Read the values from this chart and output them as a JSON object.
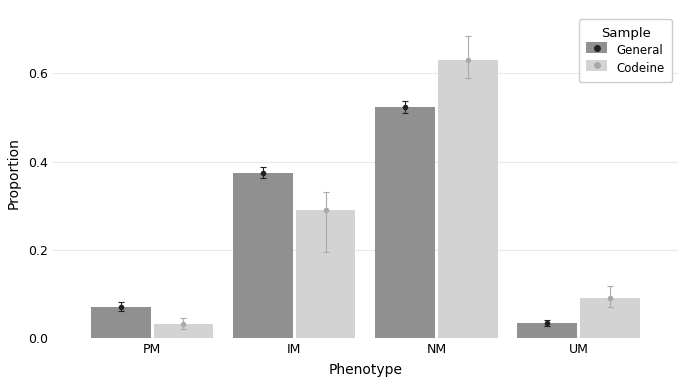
{
  "categories": [
    "PM",
    "IM",
    "NM",
    "UM"
  ],
  "general_values": [
    0.071,
    0.375,
    0.524,
    0.034
  ],
  "codeine_values": [
    0.033,
    0.29,
    0.63,
    0.09
  ],
  "general_errors_lo": [
    0.01,
    0.013,
    0.013,
    0.007
  ],
  "general_errors_hi": [
    0.01,
    0.013,
    0.013,
    0.007
  ],
  "codeine_errors_lo": [
    0.012,
    0.095,
    0.04,
    0.02
  ],
  "codeine_errors_hi": [
    0.012,
    0.04,
    0.055,
    0.028
  ],
  "general_color": "#909090",
  "codeine_color": "#d3d3d3",
  "xlabel": "Phenotype",
  "ylabel": "Proportion",
  "ylim": [
    0.0,
    0.75
  ],
  "bar_width": 0.42,
  "bar_gap": 0.02,
  "background_color": "#ffffff",
  "grid_color": "#e8e8e8",
  "legend_title": "Sample",
  "legend_labels": [
    "General",
    "Codeine"
  ],
  "general_dot_color": "#222222",
  "codeine_dot_color": "#aaaaaa"
}
